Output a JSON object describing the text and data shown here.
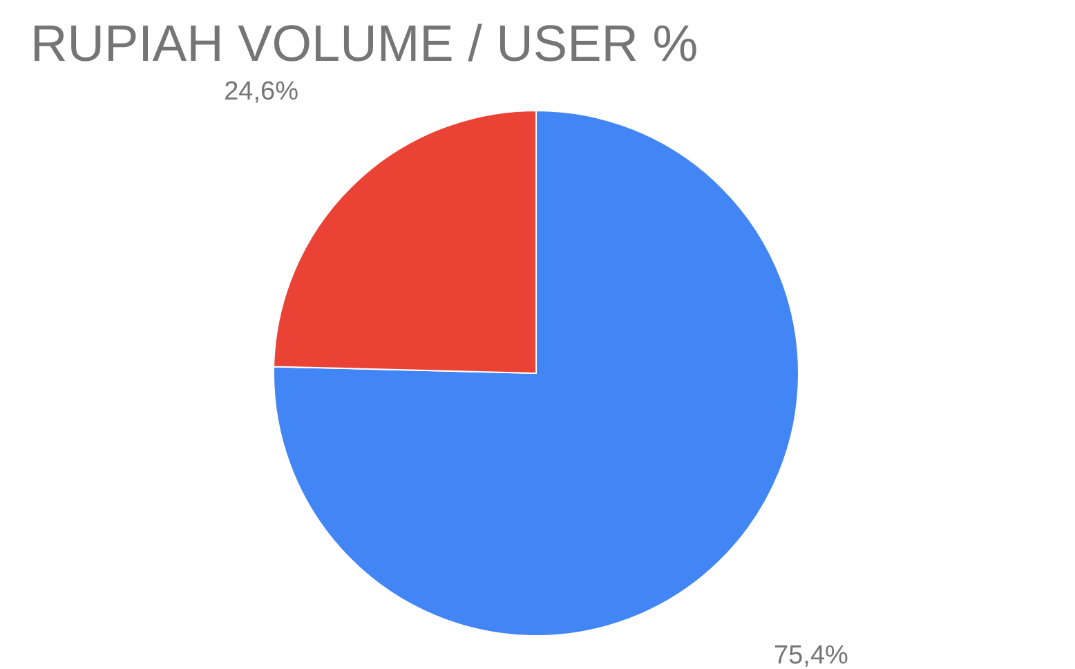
{
  "chart_data": {
    "type": "pie",
    "title": "RUPIAH VOLUME / USER %",
    "categories": [
      null,
      null
    ],
    "values": [
      75.4,
      24.6
    ],
    "colors": [
      "#4285f4",
      "#ea4335"
    ],
    "value_labels": [
      "75,4%",
      "24,6%"
    ]
  }
}
